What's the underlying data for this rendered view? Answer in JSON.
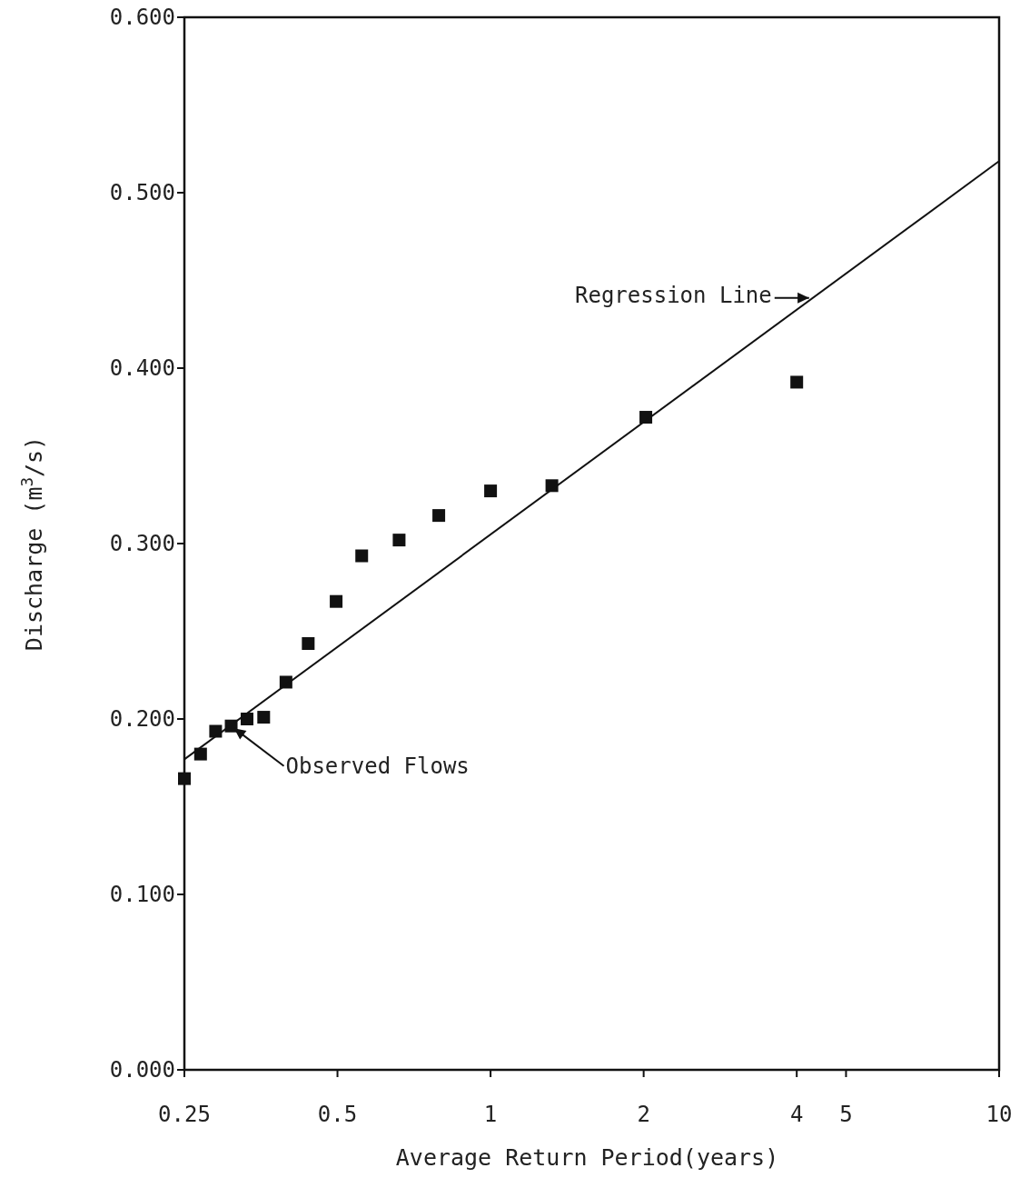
{
  "chart_data": {
    "type": "scatter",
    "xlabel": "Average Return Period(years)",
    "ylabel": "Discharge (m$^{3}$/s)",
    "log": "x",
    "xlim": [
      0.25,
      10
    ],
    "ylim": [
      0,
      0.6
    ],
    "xticks": [
      0.25,
      0.5,
      1,
      2,
      4,
      5,
      10
    ],
    "yticks": [
      {
        "value": 0,
        "label": "0.000"
      },
      {
        "value": 0.1,
        "label": "0.100"
      },
      {
        "value": 0.2,
        "label": "0.200"
      },
      {
        "value": 0.3,
        "label": "0.300"
      },
      {
        "value": 0.4,
        "label": "0.400"
      },
      {
        "value": 0.5,
        "label": "0.500"
      },
      {
        "value": 0.6,
        "label": "0.600"
      }
    ],
    "grid": false,
    "marker": "square",
    "series": [
      {
        "color": "#111111",
        "x": [
          0.25,
          0.269,
          0.288,
          0.309,
          0.332,
          0.358,
          0.396,
          0.438,
          0.497,
          0.558,
          0.661,
          0.791,
          1.0,
          1.32,
          2.02,
          4.0
        ],
        "values": [
          0.166,
          0.18,
          0.193,
          0.196,
          0.2,
          0.201,
          0.221,
          0.243,
          0.267,
          0.293,
          0.302,
          0.316,
          0.33,
          0.333,
          0.372,
          0.392
        ]
      },
      {
        "type": "line",
        "color": "#111111",
        "line_style": "solid",
        "marker": "none",
        "x": [
          0.25,
          10
        ],
        "values": [
          0.177,
          0.518
        ]
      }
    ],
    "annotations": [
      {
        "text": "Regression Line",
        "x": 4.3,
        "y": 0.44
      },
      {
        "text": "Observed Flows",
        "x": 0.309,
        "y": 0.196
      }
    ]
  }
}
